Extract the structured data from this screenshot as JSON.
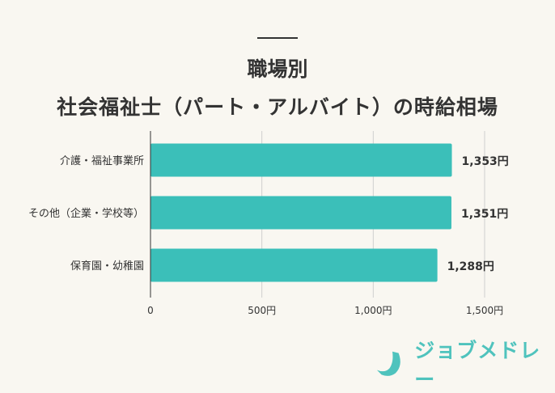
{
  "title_line1": "職場別",
  "title_line2": "社会福祉士（パート・アルバイト）の時給相場",
  "chart_data": {
    "type": "bar",
    "orientation": "horizontal",
    "categories": [
      "介護・福祉事業所",
      "その他（企業・学校等）",
      "保育園・幼稚園"
    ],
    "values": [
      1353,
      1351,
      1288
    ],
    "data_labels": [
      "1,353円",
      "1,351円",
      "1,288円"
    ],
    "xlim": [
      0,
      1500
    ],
    "xticks": [
      0,
      500,
      1000,
      1500
    ],
    "xtick_labels": [
      "0",
      "500円",
      "1,000円",
      "1,500円"
    ],
    "grid": "vertical",
    "bar_color": "#3bbfb9"
  },
  "logo": {
    "text": "ジョブメドレー",
    "color": "#4fc3bd"
  }
}
